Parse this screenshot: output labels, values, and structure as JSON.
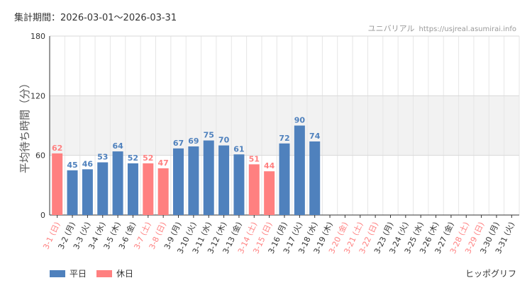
{
  "header": {
    "period_label": "集計期間：2026-03-01～2026-03-31",
    "site_name": "ユニバリアル",
    "site_url": "https://usjreal.asumirai.info"
  },
  "legend": {
    "weekday_label": "平日",
    "holiday_label": "休日"
  },
  "brand": "ヒッポグリフ",
  "colors": {
    "weekday": "#4F81BD",
    "holiday": "#FF8080",
    "band": "#F2F2F2"
  },
  "chart_data": {
    "type": "bar",
    "ylabel": "平均待ち時間（分）",
    "ylim": [
      0,
      180
    ],
    "yticks": [
      0,
      60,
      120,
      180
    ],
    "shaded_band": [
      60,
      120
    ],
    "categories": [
      "3-1 (日)",
      "3-2 (月)",
      "3-3 (火)",
      "3-4 (水)",
      "3-5 (木)",
      "3-6 (金)",
      "3-7 (土)",
      "3-8 (日)",
      "3-9 (月)",
      "3-10 (火)",
      "3-11 (水)",
      "3-12 (木)",
      "3-13 (金)",
      "3-14 (土)",
      "3-15 (日)",
      "3-16 (月)",
      "3-17 (火)",
      "3-18 (水)",
      "3-19 (木)",
      "3-20 (金)",
      "3-21 (土)",
      "3-22 (日)",
      "3-23 (月)",
      "3-24 (火)",
      "3-25 (水)",
      "3-26 (木)",
      "3-27 (金)",
      "3-28 (土)",
      "3-29 (日)",
      "3-30 (月)",
      "3-31 (火)"
    ],
    "label_types": [
      "holiday",
      "weekday",
      "weekday",
      "weekday",
      "weekday",
      "weekday",
      "holiday",
      "holiday",
      "weekday",
      "weekday",
      "weekday",
      "weekday",
      "weekday",
      "holiday",
      "holiday",
      "weekday",
      "weekday",
      "weekday",
      "weekday",
      "holiday",
      "holiday",
      "holiday",
      "weekday",
      "weekday",
      "weekday",
      "weekday",
      "weekday",
      "holiday",
      "holiday",
      "weekday",
      "weekday"
    ],
    "values": [
      62,
      45,
      46,
      53,
      64,
      52,
      52,
      47,
      67,
      69,
      75,
      70,
      61,
      51,
      44,
      72,
      90,
      74,
      null,
      null,
      null,
      null,
      null,
      null,
      null,
      null,
      null,
      null,
      null,
      null,
      null
    ],
    "bar_types": [
      "holiday",
      "weekday",
      "weekday",
      "weekday",
      "weekday",
      "weekday",
      "holiday",
      "holiday",
      "weekday",
      "weekday",
      "weekday",
      "weekday",
      "weekday",
      "holiday",
      "holiday",
      "weekday",
      "weekday",
      "weekday",
      null,
      null,
      null,
      null,
      null,
      null,
      null,
      null,
      null,
      null,
      null,
      null,
      null
    ]
  }
}
